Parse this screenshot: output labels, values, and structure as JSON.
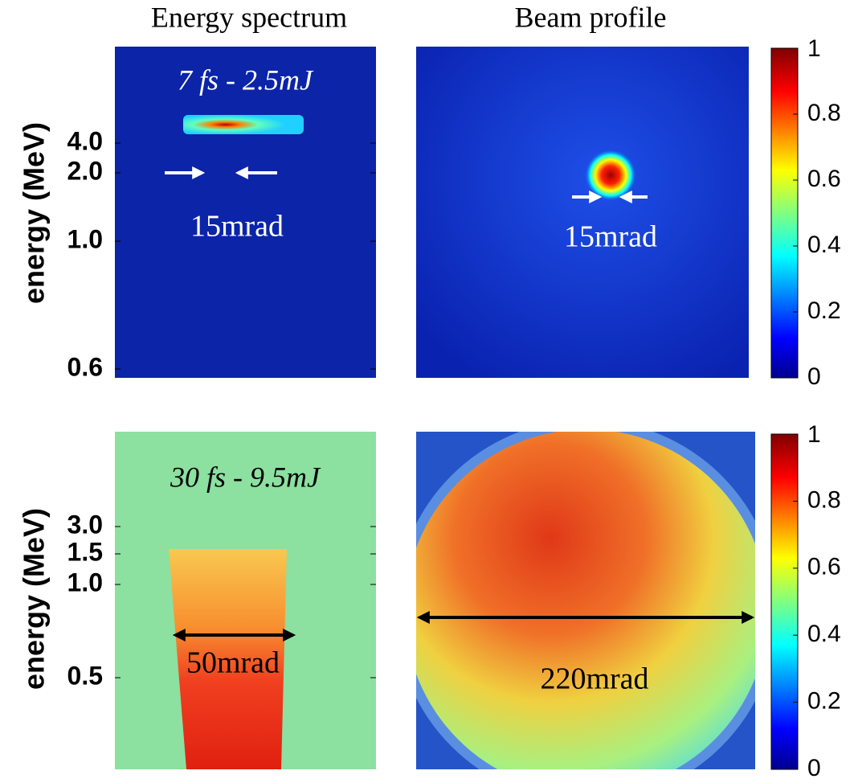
{
  "columns": [
    "Energy spectrum",
    "Beam profile"
  ],
  "rows": [
    {
      "y_label": "energy (MeV)",
      "y_ticks": [
        {
          "value": 4,
          "label": "4.0"
        },
        {
          "value": 2,
          "label": "2.0"
        },
        {
          "value": 1,
          "label": "1.0"
        },
        0.6
      ],
      "annotation": "7 fs - 2.5mJ",
      "spectrum_width": "15mrad",
      "profile_width": "15mrad",
      "colorbar_lim": [
        0,
        1
      ],
      "colorbar_ticks": [
        0,
        0.2,
        0.4,
        0.6,
        0.8,
        1
      ]
    },
    {
      "y_label": "energy (MeV)",
      "y_ticks": [
        {
          "value": 3,
          "label": "3.0"
        },
        {
          "value": 1.5,
          "label": "1.5"
        },
        {
          "value": 1,
          "label": "1.0"
        },
        0.5
      ],
      "annotation": "30 fs - 9.5mJ",
      "spectrum_width": "50mrad",
      "profile_width": "220mrad",
      "colorbar_lim": [
        0,
        1
      ],
      "colorbar_ticks": [
        0,
        0.2,
        0.4,
        0.6,
        0.8,
        1
      ]
    }
  ]
}
